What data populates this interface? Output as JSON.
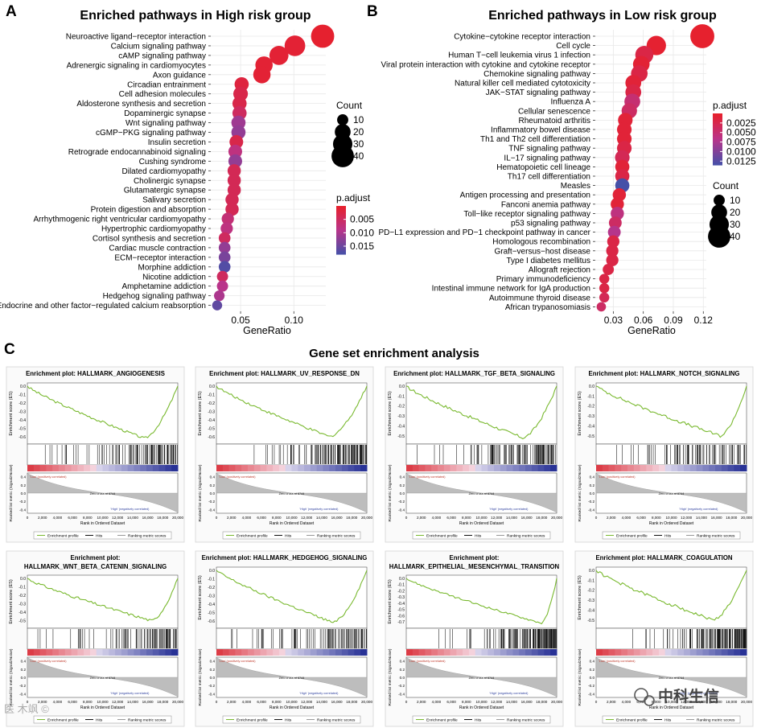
{
  "panels": {
    "A": {
      "letter": "A",
      "chart_data": {
        "type": "scatter",
        "title": "Enriched pathways in High risk group",
        "xlabel": "GeneRatio",
        "ylabel": "",
        "xlim": [
          0.022,
          0.13
        ],
        "xticks": [
          0.05,
          0.1
        ],
        "xtick_labels": [
          "0.05",
          "0.10"
        ],
        "pathways": [
          {
            "name": "Neuroactive ligand−receptor interaction",
            "x": 0.127,
            "count": 43,
            "padj": 0.0005
          },
          {
            "name": "Calcium signaling pathway",
            "x": 0.101,
            "count": 34,
            "padj": 0.001
          },
          {
            "name": "cAMP signaling pathway",
            "x": 0.086,
            "count": 29,
            "padj": 0.001
          },
          {
            "name": "Adrenergic signaling in cardiomyocytes",
            "x": 0.072,
            "count": 24,
            "padj": 0.001
          },
          {
            "name": "Axon guidance",
            "x": 0.07,
            "count": 24,
            "padj": 0.001
          },
          {
            "name": "Circadian entrainment",
            "x": 0.051,
            "count": 16,
            "padj": 0.002
          },
          {
            "name": "Cell adhesion molecules",
            "x": 0.05,
            "count": 17,
            "padj": 0.003
          },
          {
            "name": "Aldosterone synthesis and secretion",
            "x": 0.049,
            "count": 16,
            "padj": 0.003
          },
          {
            "name": "Dopaminergic synapse",
            "x": 0.049,
            "count": 16,
            "padj": 0.005
          },
          {
            "name": "Wnt signaling pathway",
            "x": 0.048,
            "count": 16,
            "padj": 0.011
          },
          {
            "name": "cGMP−PKG signaling pathway",
            "x": 0.048,
            "count": 16,
            "padj": 0.012
          },
          {
            "name": "Insulin secretion",
            "x": 0.046,
            "count": 15,
            "padj": 0.003
          },
          {
            "name": "Retrograde endocannabinoid signaling",
            "x": 0.045,
            "count": 15,
            "padj": 0.008
          },
          {
            "name": "Cushing syndrome",
            "x": 0.045,
            "count": 15,
            "padj": 0.012
          },
          {
            "name": "Dilated cardiomyopathy",
            "x": 0.044,
            "count": 14,
            "padj": 0.004
          },
          {
            "name": "Cholinergic synapse",
            "x": 0.044,
            "count": 14,
            "padj": 0.004
          },
          {
            "name": "Glutamatergic synapse",
            "x": 0.044,
            "count": 14,
            "padj": 0.004
          },
          {
            "name": "Salivary secretion",
            "x": 0.042,
            "count": 14,
            "padj": 0.004
          },
          {
            "name": "Protein digestion and absorption",
            "x": 0.042,
            "count": 14,
            "padj": 0.004
          },
          {
            "name": "Arrhythmogenic right ventricular cardiomyopathy",
            "x": 0.038,
            "count": 12,
            "padj": 0.007
          },
          {
            "name": "Hypertrophic cardiomyopathy",
            "x": 0.037,
            "count": 12,
            "padj": 0.008
          },
          {
            "name": "Cortisol synthesis and secretion",
            "x": 0.035,
            "count": 11,
            "padj": 0.005
          },
          {
            "name": "Cardiac muscle contraction",
            "x": 0.035,
            "count": 11,
            "padj": 0.012
          },
          {
            "name": "ECM−receptor interaction",
            "x": 0.035,
            "count": 11,
            "padj": 0.014
          },
          {
            "name": "Morphine addiction",
            "x": 0.035,
            "count": 11,
            "padj": 0.017
          },
          {
            "name": "Nicotine addiction",
            "x": 0.033,
            "count": 10,
            "padj": 0.005
          },
          {
            "name": "Amphetamine addiction",
            "x": 0.033,
            "count": 10,
            "padj": 0.009
          },
          {
            "name": "Hedgehog signaling pathway",
            "x": 0.03,
            "count": 9,
            "padj": 0.01
          },
          {
            "name": "Endocrine and other factor−regulated calcium reabsorption",
            "x": 0.028,
            "count": 8,
            "padj": 0.016
          }
        ],
        "size_legend": {
          "title": "Count",
          "values": [
            10,
            20,
            30,
            40
          ]
        },
        "color_legend": {
          "title": "p.adjust",
          "min": 0.0,
          "max": 0.018,
          "ticks": [
            0.005,
            0.01,
            0.015
          ],
          "tick_labels": [
            "0.005",
            "0.010",
            "0.015"
          ],
          "low_color": "#e8202a",
          "mid_color": "#b9348a",
          "high_color": "#4650a8"
        }
      }
    },
    "B": {
      "letter": "B",
      "chart_data": {
        "type": "scatter",
        "title": "Enriched pathways in Low risk group",
        "xlabel": "GeneRatio",
        "ylabel": "",
        "xlim": [
          0.012,
          0.123
        ],
        "xticks": [
          0.03,
          0.06,
          0.09,
          0.12
        ],
        "xtick_labels": [
          "0.03",
          "0.06",
          "0.09",
          "0.12"
        ],
        "pathways": [
          {
            "name": "Cytokine−cytokine receptor interaction",
            "x": 0.119,
            "count": 46,
            "padj": 0.0003
          },
          {
            "name": "Cell cycle",
            "x": 0.073,
            "count": 30,
            "padj": 0.0005
          },
          {
            "name": "Human T−cell leukemia virus 1 infection",
            "x": 0.061,
            "count": 26,
            "padj": 0.002
          },
          {
            "name": "Viral protein interaction with cytokine and cytokine receptor",
            "x": 0.058,
            "count": 22,
            "padj": 0.0008
          },
          {
            "name": "Chemokine signaling pathway",
            "x": 0.056,
            "count": 22,
            "padj": 0.002
          },
          {
            "name": "Natural killer cell mediated cytotoxicity",
            "x": 0.05,
            "count": 20,
            "padj": 0.001
          },
          {
            "name": "JAK−STAT signaling pathway",
            "x": 0.05,
            "count": 20,
            "padj": 0.002
          },
          {
            "name": "Influenza A",
            "x": 0.049,
            "count": 20,
            "padj": 0.005
          },
          {
            "name": "Cellular senescence",
            "x": 0.046,
            "count": 19,
            "padj": 0.004
          },
          {
            "name": "Rheumatoid arthritis",
            "x": 0.042,
            "count": 17,
            "padj": 0.001
          },
          {
            "name": "Inflammatory bowel disease",
            "x": 0.041,
            "count": 17,
            "padj": 0.001
          },
          {
            "name": "Th1 and Th2 cell differentiation",
            "x": 0.041,
            "count": 17,
            "padj": 0.001
          },
          {
            "name": "TNF signaling pathway",
            "x": 0.041,
            "count": 17,
            "padj": 0.002
          },
          {
            "name": "IL−17 signaling pathway",
            "x": 0.039,
            "count": 17,
            "padj": 0.003
          },
          {
            "name": "Hematopoietic cell lineage",
            "x": 0.039,
            "count": 16,
            "padj": 0.001
          },
          {
            "name": "Th17 cell differentiation",
            "x": 0.039,
            "count": 16,
            "padj": 0.002
          },
          {
            "name": "Measles",
            "x": 0.039,
            "count": 16,
            "padj": 0.0135
          },
          {
            "name": "Antigen processing and presentation",
            "x": 0.036,
            "count": 14,
            "padj": 0.001
          },
          {
            "name": "Fanconi anemia pathway",
            "x": 0.034,
            "count": 14,
            "padj": 0.001
          },
          {
            "name": "Toll−like receptor signaling pathway",
            "x": 0.034,
            "count": 14,
            "padj": 0.006
          },
          {
            "name": "p53 signaling pathway",
            "x": 0.032,
            "count": 13,
            "padj": 0.004
          },
          {
            "name": "PD−L1 expression and PD−1 checkpoint pathway in cancer",
            "x": 0.031,
            "count": 13,
            "padj": 0.007
          },
          {
            "name": "Homologous recombination",
            "x": 0.03,
            "count": 12,
            "padj": 0.002
          },
          {
            "name": "Graft−versus−host disease",
            "x": 0.029,
            "count": 12,
            "padj": 0.002
          },
          {
            "name": "Type I diabetes mellitus",
            "x": 0.029,
            "count": 12,
            "padj": 0.002
          },
          {
            "name": "Allograft rejection",
            "x": 0.025,
            "count": 10,
            "padj": 0.002
          },
          {
            "name": "Primary immunodeficiency",
            "x": 0.021,
            "count": 8,
            "padj": 0.002
          },
          {
            "name": "Intestinal immune network for IgA production",
            "x": 0.021,
            "count": 8,
            "padj": 0.002
          },
          {
            "name": "Autoimmune thyroid disease",
            "x": 0.021,
            "count": 8,
            "padj": 0.003
          },
          {
            "name": "African trypanosomiasis",
            "x": 0.018,
            "count": 7,
            "padj": 0.004
          }
        ],
        "color_legend": {
          "title": "p.adjust",
          "min": 0.0,
          "max": 0.0135,
          "ticks": [
            0.0025,
            0.005,
            0.0075,
            0.01,
            0.0125
          ],
          "tick_labels": [
            "0.0025",
            "0.0050",
            "0.0075",
            "0.0100",
            "0.0125"
          ],
          "low_color": "#e8202a",
          "mid_color": "#b9348a",
          "high_color": "#4650a8"
        },
        "size_legend": {
          "title": "Count",
          "values": [
            10,
            20,
            30,
            40
          ]
        }
      }
    },
    "C": {
      "letter": "C",
      "title": "Gene set enrichment analysis",
      "plots": [
        {
          "title1": "Enrichment plot: HALLMARK_ANGIOGENESIS",
          "title2": "",
          "yticks": [
            "0.0",
            "-0.1",
            "-0.2",
            "-0.3",
            "-0.4",
            "-0.5",
            "-0.6"
          ],
          "ymin": -0.65,
          "min_es": -0.62,
          "min_at": 15500,
          "hit_density": 0.5
        },
        {
          "title1": "Enrichment plot: HALLMARK_UV_RESPONSE_DN",
          "title2": "",
          "yticks": [
            "0.0",
            "-0.1",
            "-0.2",
            "-0.3",
            "-0.4",
            "-0.5",
            "-0.6"
          ],
          "ymin": -0.65,
          "min_es": -0.6,
          "min_at": 15000,
          "hit_density": 0.9
        },
        {
          "title1": "Enrichment plot: HALLMARK_TGF_BETA_SIGNALING",
          "title2": "",
          "yticks": [
            "0.0",
            "-0.1",
            "-0.2",
            "-0.3",
            "-0.4",
            "-0.5"
          ],
          "ymin": -0.55,
          "min_es": -0.52,
          "min_at": 15500,
          "hit_density": 0.6
        },
        {
          "title1": "Enrichment plot: HALLMARK_NOTCH_SIGNALING",
          "title2": "",
          "yticks": [
            "0.0",
            "-0.1",
            "-0.2",
            "-0.3",
            "-0.4",
            "-0.5"
          ],
          "ymin": -0.55,
          "min_es": -0.5,
          "min_at": 16500,
          "hit_density": 0.35
        },
        {
          "title1": "Enrichment plot:",
          "title2": "HALLMARK_WNT_BETA_CATENIN_SIGNALING",
          "yticks": [
            "0.0",
            "-0.1",
            "-0.2",
            "-0.3",
            "-0.4",
            "-0.5"
          ],
          "ymin": -0.55,
          "min_es": -0.5,
          "min_at": 16500,
          "hit_density": 0.4
        },
        {
          "title1": "Enrichment plot: HALLMARK_HEDGEHOG_SIGNALING",
          "title2": "",
          "yticks": [
            "0.0",
            "-0.1",
            "-0.2",
            "-0.3",
            "-0.4",
            "-0.5",
            "-0.6"
          ],
          "ymin": -0.65,
          "min_es": -0.62,
          "min_at": 15500,
          "hit_density": 0.35
        },
        {
          "title1": "Enrichment plot:",
          "title2": "HALLMARK_EPITHELIAL_MESENCHYMAL_TRANSITION",
          "yticks": [
            "0.0",
            "-0.1",
            "-0.2",
            "-0.3",
            "-0.4",
            "-0.5",
            "-0.6",
            "-0.7"
          ],
          "ymin": -0.75,
          "min_es": -0.72,
          "min_at": 18000,
          "hit_density": 1.0
        },
        {
          "title1": "Enrichment plot: HALLMARK_COAGULATION",
          "title2": "",
          "yticks": [
            "0.0",
            "-0.1",
            "-0.2",
            "-0.3",
            "-0.4",
            "-0.5"
          ],
          "ymin": -0.55,
          "min_es": -0.5,
          "min_at": 15500,
          "hit_density": 0.95
        }
      ],
      "common": {
        "es_ylabel": "Enrichment score (ES)",
        "metric_ylabel": "Ranked list metric (Signal2Noise)",
        "metric_yticks": [
          "0.4",
          "0.2",
          "0.0",
          "-0.2",
          "-0.4"
        ],
        "xlabel": "Rank in Ordered Dataset",
        "xticks": [
          "0",
          "2,000",
          "4,000",
          "6,000",
          "8,000",
          "10,000",
          "12,000",
          "14,000",
          "16,000",
          "18,000",
          "20,000"
        ],
        "zero_cross": "Zero cross at 8744",
        "low_label": "'Low' (positively correlated)",
        "high_label": "'High' (negatively correlated)",
        "legend": [
          "Enrichment profile",
          "Hits",
          "Ranking metric scores"
        ],
        "curve_color": "#79b92f"
      }
    }
  },
  "watermark": {
    "brand": "中科生信",
    "corner": "医 木飒 ©"
  }
}
